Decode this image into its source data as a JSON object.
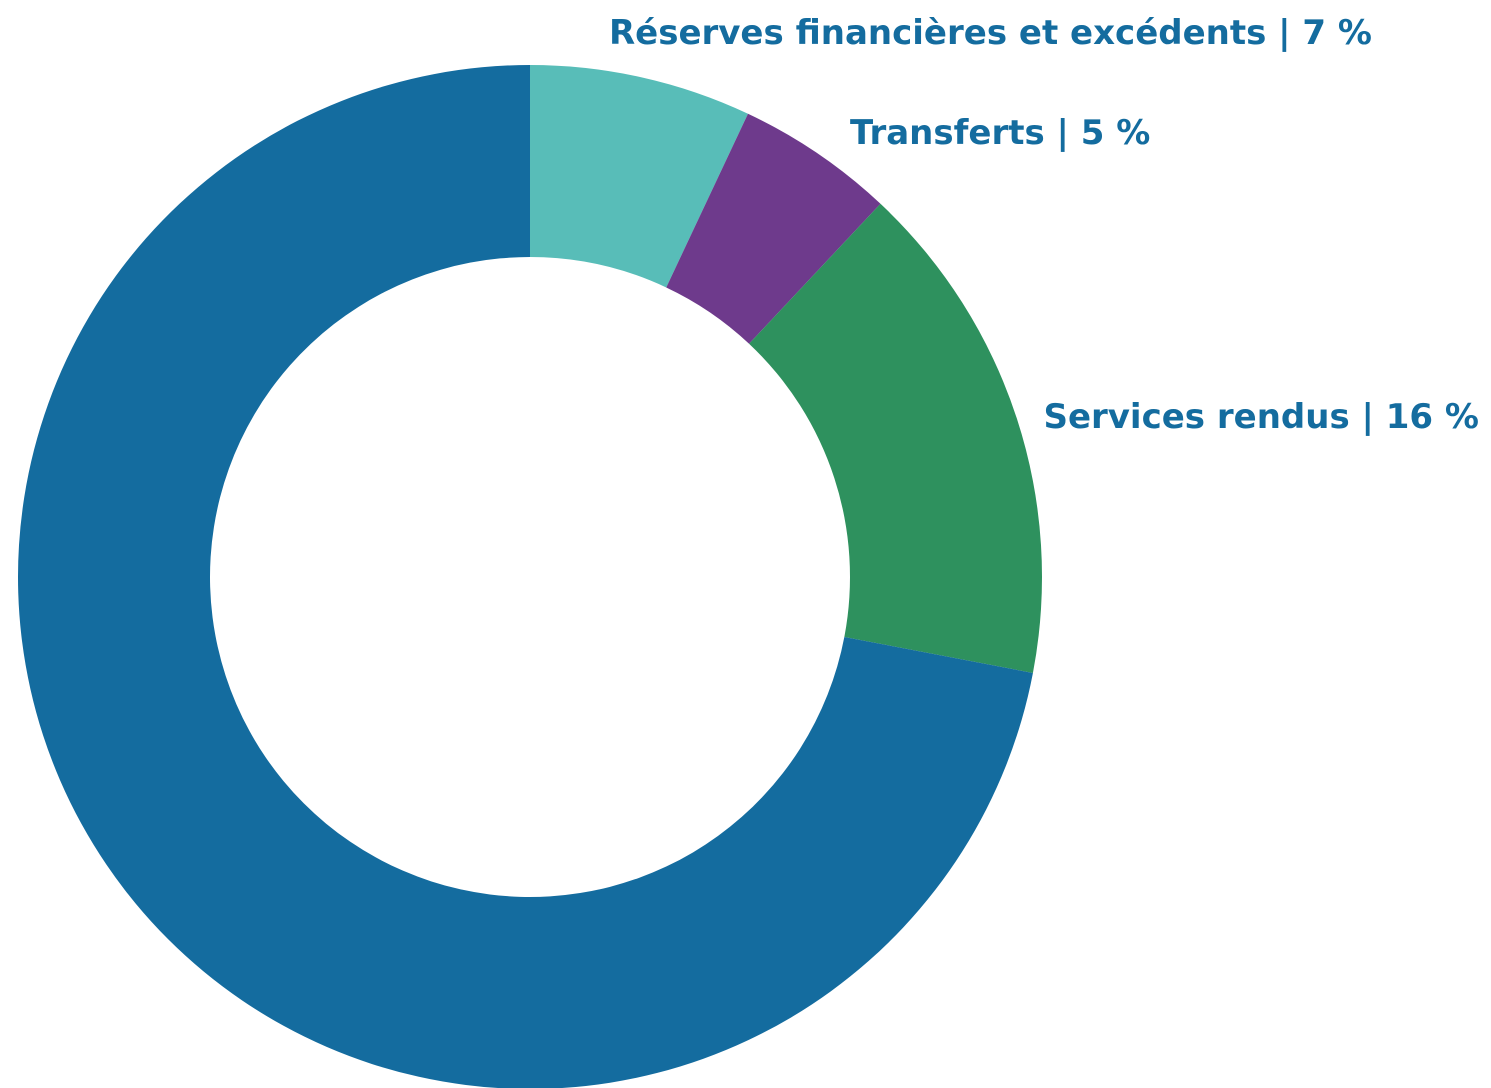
{
  "chart_data": {
    "type": "pie",
    "variant": "donut",
    "start": "top",
    "direction": "clockwise",
    "slices": [
      {
        "label": "Réserves financières et excédents  | 7 %",
        "value": 7,
        "color": "#58bdb8"
      },
      {
        "label": "Transferts | 5 %",
        "value": 5,
        "color": "#6e3a8c"
      },
      {
        "label": "Services rendus | 16 %",
        "value": 16,
        "color": "#2e915e"
      },
      {
        "label": "",
        "value": 72,
        "color": "#146c9f"
      }
    ],
    "label_color": "#146c9f"
  }
}
